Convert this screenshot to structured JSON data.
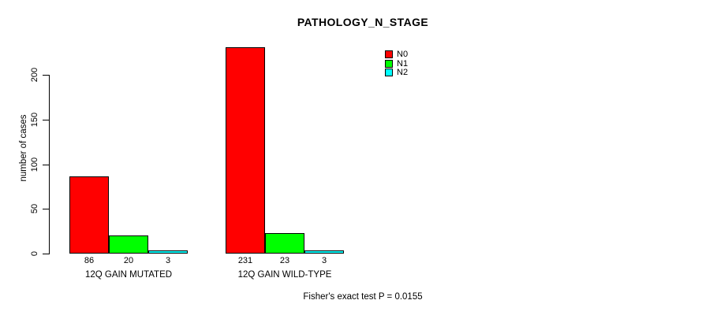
{
  "chart_data": {
    "type": "bar",
    "title": "PATHOLOGY_N_STAGE",
    "xlabel": "",
    "ylabel": "number of cases",
    "categories": [
      "12Q GAIN MUTATED",
      "12Q GAIN WILD-TYPE"
    ],
    "series": [
      {
        "name": "N0",
        "color": "#ff0000",
        "values": [
          86,
          231
        ]
      },
      {
        "name": "N1",
        "color": "#00ff00",
        "values": [
          20,
          23
        ]
      },
      {
        "name": "N2",
        "color": "#00ffff",
        "values": [
          3,
          3
        ]
      }
    ],
    "value_labels_shown": true,
    "yticks": [
      0,
      50,
      100,
      150,
      200
    ],
    "ylim": [
      0,
      231
    ],
    "grid": false,
    "legend": {
      "position": "top-right",
      "entries": [
        "N0",
        "N1",
        "N2"
      ]
    },
    "annotation": "Fisher's exact test P = 0.0155"
  },
  "colors": {
    "background": "#ffffff",
    "axis": "#000000",
    "text": "#000000",
    "bar_border": "#000000"
  }
}
